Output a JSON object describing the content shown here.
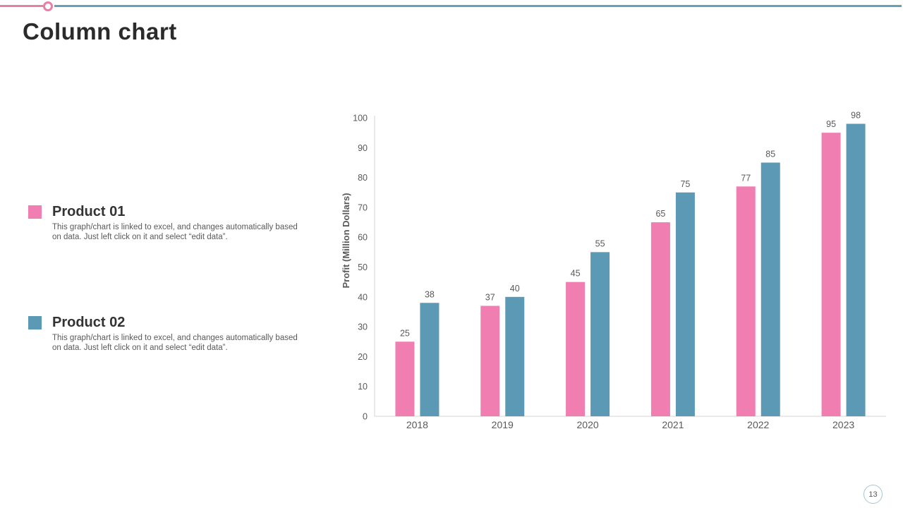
{
  "slide": {
    "title": "Column chart",
    "page_number": "13"
  },
  "theme": {
    "accent_pink": "#e87ea6",
    "accent_teal": "#66a0b4",
    "text_dark": "#2b2b2b",
    "text_gray": "#595959",
    "axis_line": "#d6d6d6"
  },
  "legend": {
    "items": [
      {
        "label": "Product 01",
        "color": "#f07eb1",
        "description": "This graph/chart is linked to excel, and changes automatically based on data. Just left click on it and select “edit data”."
      },
      {
        "label": "Product 02",
        "color": "#5c99b4",
        "description": "This graph/chart is linked to excel, and changes automatically based on data. Just left click on it and select “edit data”."
      }
    ]
  },
  "chart_data": {
    "type": "bar",
    "categories": [
      "2018",
      "2019",
      "2020",
      "2021",
      "2022",
      "2023"
    ],
    "series": [
      {
        "name": "Product 01",
        "color": "#f07eb1",
        "values": [
          25,
          37,
          45,
          65,
          77,
          95
        ]
      },
      {
        "name": "Product 02",
        "color": "#5c99b4",
        "values": [
          38,
          40,
          55,
          75,
          85,
          98
        ]
      }
    ],
    "ylabel": "Profit (Million Dollars)",
    "ylim": [
      0,
      100
    ],
    "ytick_step": 10,
    "grid": false,
    "data_labels": true,
    "legend_position": "left"
  }
}
